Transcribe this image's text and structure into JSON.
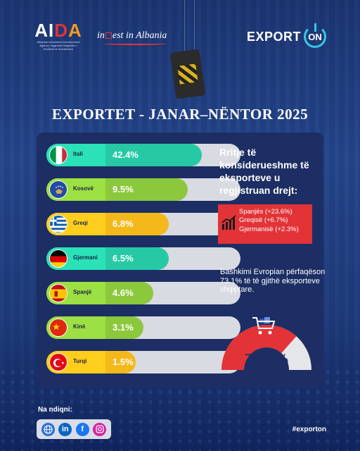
{
  "header": {
    "aida_logo": "AIDA",
    "aida_subtitle": "Albanian Investment Development Agency / Agjencia Shqiptare e Zhvillimit të Investimeve",
    "invest_logo": "invest in Albania",
    "export_on_word": "EXPORT",
    "export_on_badge": "ON"
  },
  "title": "EXPORTET - JANAR–NËNTOR 2025",
  "countries": [
    {
      "name": "Itali",
      "percent_label": "42.4%",
      "fill_fraction": 0.8,
      "color": "#26c9a4",
      "flag": "italy-flag"
    },
    {
      "name": "Kosovë",
      "percent_label": "9.5%",
      "fill_fraction": 0.73,
      "color": "#8cc83c",
      "flag": "kosovo-flag"
    },
    {
      "name": "Greqi",
      "percent_label": "6.8%",
      "fill_fraction": 0.63,
      "color": "#f4b81a",
      "flag": "greece-flag"
    },
    {
      "name": "Gjermani",
      "percent_label": "6.5%",
      "fill_fraction": 0.63,
      "color": "#26c9a4",
      "flag": "germany-flag"
    },
    {
      "name": "Spanjë",
      "percent_label": "4.6%",
      "fill_fraction": 0.55,
      "color": "#8cc83c",
      "flag": "spain-flag"
    },
    {
      "name": "Kinë",
      "percent_label": "3.1%",
      "fill_fraction": 0.5,
      "color": "#8cc83c",
      "flag": "china-flag"
    },
    {
      "name": "Turqi",
      "percent_label": "1.5%",
      "fill_fraction": 0.46,
      "color": "#f4b81a",
      "flag": "turkey-flag"
    }
  ],
  "growth": {
    "heading": "Rritje të konsiderueshme të eksporteve u regjistruan drejt:",
    "items": [
      "Spanjës (+23.6%)",
      "Greqisë (+6.7%)",
      "Gjermanisë (+2.3%)"
    ],
    "box_color": "#e23337"
  },
  "eu": {
    "text": "Bashkimi Evropian përfaqëson 73.1% të të gjithë eksporteve shqiptare.",
    "gauge_value": 73.1,
    "gauge_label": "73.1%",
    "gauge_color": "#e23337"
  },
  "footer": {
    "follow_label": "Na ndiqni:",
    "social_icons": [
      "globe-icon",
      "linkedin-icon",
      "facebook-icon",
      "instagram-icon"
    ],
    "hashtag": "#exporton"
  }
}
